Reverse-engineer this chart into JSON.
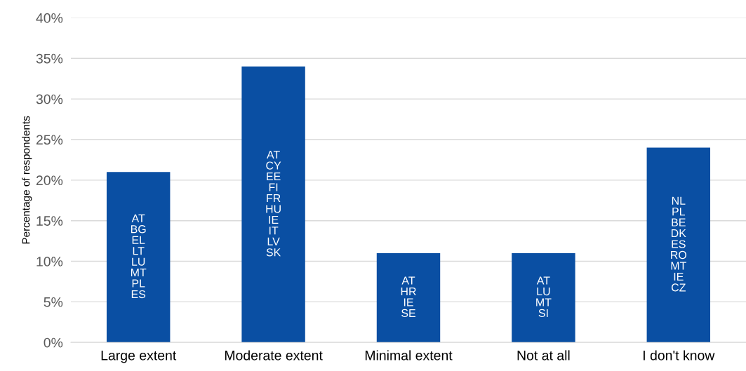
{
  "chart_data": {
    "type": "bar",
    "ylabel": "Percentage of respondents",
    "categories": [
      "Large extent",
      "Moderate extent",
      "Minimal extent",
      "Not at all",
      "I don't know"
    ],
    "values": [
      21,
      34,
      11,
      11,
      24
    ],
    "color": "#0a4fa3",
    "ylim": [
      0,
      40
    ],
    "yticks": [
      {
        "value": 0,
        "label": "0%"
      },
      {
        "value": 5,
        "label": "5%"
      },
      {
        "value": 10,
        "label": "10%"
      },
      {
        "value": 15,
        "label": "15%"
      },
      {
        "value": 20,
        "label": "20%"
      },
      {
        "value": 25,
        "label": "25%"
      },
      {
        "value": 30,
        "label": "30%"
      },
      {
        "value": 35,
        "label": "35%"
      },
      {
        "value": 40,
        "label": "40%"
      }
    ],
    "grid": "y",
    "legend": false,
    "annotations": [
      "AT\nBG\nEL\nLT\nLU\nMT\nPL\nES",
      "AT\nCY\nEE\nFI\nFR\nHU\nIE\nIT\nLV\nSK",
      "AT\nHR\nIE\nSE",
      "AT\nLU\nMT\nSI",
      "NL\nPL\nBE\nDK\nES\nRO\nMT\nIE\nCZ"
    ]
  }
}
